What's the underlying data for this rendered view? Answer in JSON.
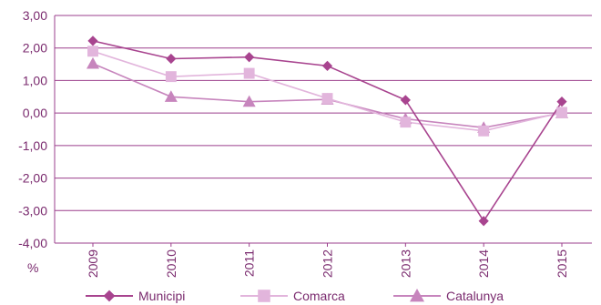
{
  "chart_data": {
    "type": "line",
    "ylabel": "%",
    "x": [
      "2009",
      "2010",
      "2011",
      "2012",
      "2013",
      "2014",
      "2015"
    ],
    "ylim": [
      -4,
      3
    ],
    "yticks": [
      "3,00",
      "2,00",
      "1,00",
      "0,00",
      "-1,00",
      "-2,00",
      "-3,00",
      "-4,00"
    ],
    "grid": true,
    "legend_position": "bottom",
    "series": [
      {
        "name": "Municipi",
        "marker": "diamond",
        "color": "#a8448f",
        "values": [
          2.22,
          1.67,
          1.72,
          1.45,
          0.4,
          -3.32,
          0.35
        ]
      },
      {
        "name": "Comarca",
        "marker": "square",
        "color": "#e2b5dc",
        "values": [
          1.9,
          1.12,
          1.22,
          0.45,
          -0.28,
          -0.55,
          0.02
        ]
      },
      {
        "name": "Catalunya",
        "marker": "triangle",
        "color": "#c785bd",
        "values": [
          1.52,
          0.5,
          0.35,
          0.42,
          -0.18,
          -0.45,
          0.0
        ]
      }
    ]
  }
}
